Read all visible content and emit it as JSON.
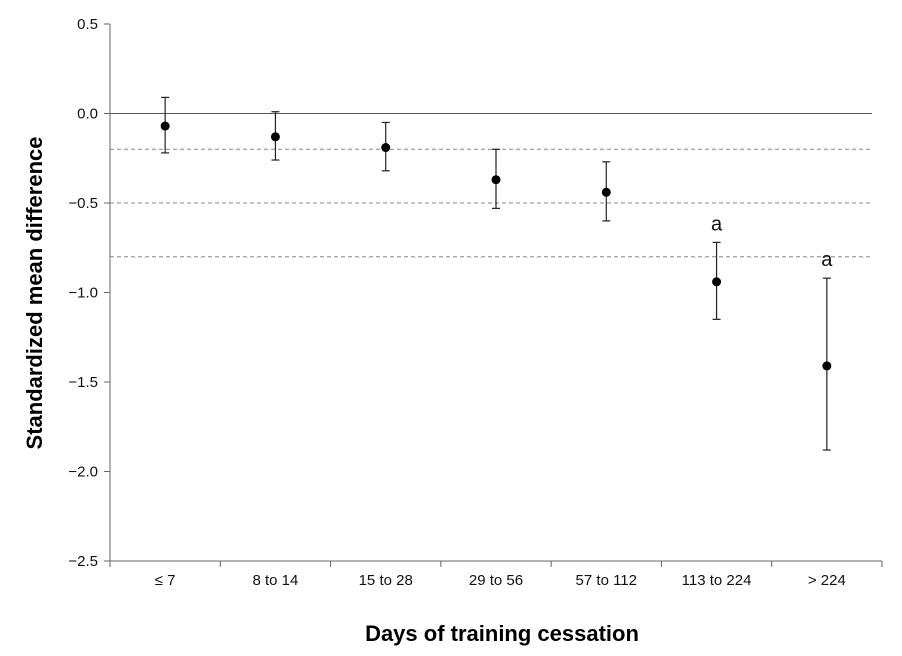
{
  "chart_data": {
    "type": "scatter",
    "title": "",
    "xlabel": "Days of training cessation",
    "ylabel": "Standardized mean difference",
    "categories": [
      "≤ 7",
      "8 to 14",
      "15 to 28",
      "29 to 56",
      "57 to 112",
      "113 to 224",
      "> 224"
    ],
    "values": [
      -0.07,
      -0.13,
      -0.19,
      -0.37,
      -0.44,
      -0.94,
      -1.41
    ],
    "ci_lower": [
      -0.22,
      -0.26,
      -0.32,
      -0.53,
      -0.6,
      -1.15,
      -1.88
    ],
    "ci_upper": [
      0.09,
      0.01,
      -0.05,
      -0.2,
      -0.27,
      -0.72,
      -0.92
    ],
    "annotations": [
      "",
      "",
      "",
      "",
      "",
      "a",
      "a"
    ],
    "reference_lines": [
      0.0,
      -0.2,
      -0.5,
      -0.8
    ],
    "ylim": [
      -2.5,
      0.5
    ],
    "yticks": [
      0.5,
      0.0,
      -0.5,
      -1.0,
      -1.5,
      -2.0,
      -2.5
    ],
    "ytick_labels": [
      "0.5",
      "0.0",
      "−0.5",
      "−1.0",
      "−1.5",
      "−2.0",
      "−2.5"
    ],
    "grid": false,
    "colors": {
      "points": "#000000",
      "reference_dashed": "#888888",
      "zero_line": "#555555"
    }
  }
}
